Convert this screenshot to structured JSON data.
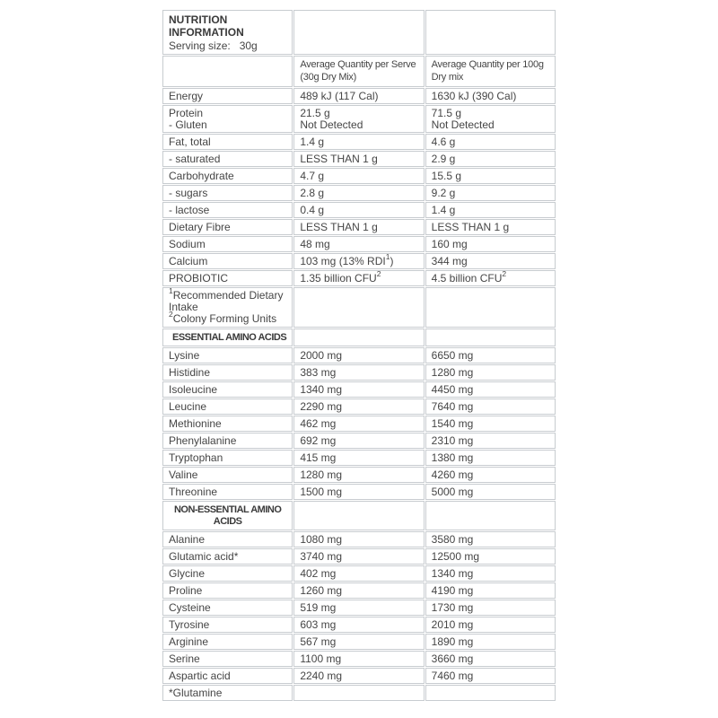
{
  "page": {
    "background": "#ffffff",
    "text_color": "#454545",
    "bold_text_color": "#3a3a3a",
    "border_color": "#c8ccd0"
  },
  "table": {
    "header": {
      "title": "NUTRITION INFORMATION",
      "serving_label": "Serving size:",
      "serving_value": "30g"
    },
    "columns": {
      "per_serve": "Average Quantity per Serve<br>(30g Dry Mix)",
      "per_100g": "Average Quantity per 100g<br>Dry mix"
    },
    "rows": [
      {
        "type": "data",
        "label": "Energy",
        "per_serve": "489 kJ (117 Cal)",
        "per_100g": "1630 kJ (390 Cal)"
      },
      {
        "type": "data",
        "label": "Protein<br>- Gluten",
        "per_serve": "21.5 g<br>Not Detected",
        "per_100g": "71.5 g<br>Not Detected"
      },
      {
        "type": "data",
        "label": "Fat, total",
        "per_serve": "1.4 g",
        "per_100g": "4.6 g"
      },
      {
        "type": "data",
        "label": "- saturated",
        "per_serve": "LESS THAN 1 g",
        "per_100g": "2.9 g"
      },
      {
        "type": "data",
        "label": "Carbohydrate",
        "per_serve": "4.7 g",
        "per_100g": "15.5 g"
      },
      {
        "type": "data",
        "label": "- sugars",
        "per_serve": "2.8 g",
        "per_100g": "9.2 g"
      },
      {
        "type": "data",
        "label": "- lactose",
        "per_serve": "0.4 g",
        "per_100g": "1.4 g"
      },
      {
        "type": "data",
        "label": "Dietary Fibre",
        "per_serve": "LESS THAN 1 g",
        "per_100g": "LESS THAN 1 g"
      },
      {
        "type": "data",
        "label": "Sodium",
        "per_serve": "48 mg",
        "per_100g": "160 mg"
      },
      {
        "type": "data",
        "label": "Calcium",
        "per_serve": "103 mg (13% RDI<sup>1</sup>)",
        "per_100g": "344 mg"
      },
      {
        "type": "data",
        "label": "PROBIOTIC",
        "per_serve": "1.35 billion CFU<sup>2</sup>",
        "per_100g": "4.5 billion CFU<sup>2</sup>"
      },
      {
        "type": "footnote",
        "label": "<sup>1</sup>Recommended Dietary Intake<br><sup>2</sup>Colony Forming Units",
        "per_serve": "",
        "per_100g": ""
      },
      {
        "type": "section",
        "label": "ESSENTIAL AMINO ACIDS",
        "per_serve": "",
        "per_100g": ""
      },
      {
        "type": "data",
        "label": "Lysine",
        "per_serve": "2000 mg",
        "per_100g": "6650 mg"
      },
      {
        "type": "data",
        "label": "Histidine",
        "per_serve": "383 mg",
        "per_100g": "1280 mg"
      },
      {
        "type": "data",
        "label": "Isoleucine",
        "per_serve": "1340 mg",
        "per_100g": "4450 mg"
      },
      {
        "type": "data",
        "label": "Leucine",
        "per_serve": "2290 mg",
        "per_100g": "7640 mg"
      },
      {
        "type": "data",
        "label": "Methionine",
        "per_serve": "462 mg",
        "per_100g": "1540 mg"
      },
      {
        "type": "data",
        "label": "Phenylalanine",
        "per_serve": "692 mg",
        "per_100g": "2310 mg"
      },
      {
        "type": "data",
        "label": "Tryptophan",
        "per_serve": "415 mg",
        "per_100g": "1380 mg"
      },
      {
        "type": "data",
        "label": "Valine",
        "per_serve": "1280 mg",
        "per_100g": "4260 mg"
      },
      {
        "type": "data",
        "label": "Threonine",
        "per_serve": "1500 mg",
        "per_100g": "5000 mg"
      },
      {
        "type": "section-center",
        "label": "NON-ESSENTIAL AMINO ACIDS",
        "per_serve": "",
        "per_100g": ""
      },
      {
        "type": "data",
        "label": "Alanine",
        "per_serve": "1080 mg",
        "per_100g": "3580 mg"
      },
      {
        "type": "data",
        "label": "Glutamic acid*",
        "per_serve": "3740 mg",
        "per_100g": "12500 mg"
      },
      {
        "type": "data",
        "label": "Glycine",
        "per_serve": "402 mg",
        "per_100g": "1340 mg"
      },
      {
        "type": "data",
        "label": "Proline",
        "per_serve": "1260 mg",
        "per_100g": "4190 mg"
      },
      {
        "type": "data",
        "label": "Cysteine",
        "per_serve": "519 mg",
        "per_100g": "1730 mg"
      },
      {
        "type": "data",
        "label": "Tyrosine",
        "per_serve": "603 mg",
        "per_100g": "2010 mg"
      },
      {
        "type": "data",
        "label": "Arginine",
        "per_serve": "567 mg",
        "per_100g": "1890 mg"
      },
      {
        "type": "data",
        "label": "Serine",
        "per_serve": "1100 mg",
        "per_100g": "3660 mg"
      },
      {
        "type": "data",
        "label": "Aspartic acid",
        "per_serve": "2240 mg",
        "per_100g": "7460 mg"
      },
      {
        "type": "data",
        "label": "*Glutamine",
        "per_serve": "",
        "per_100g": ""
      }
    ]
  }
}
